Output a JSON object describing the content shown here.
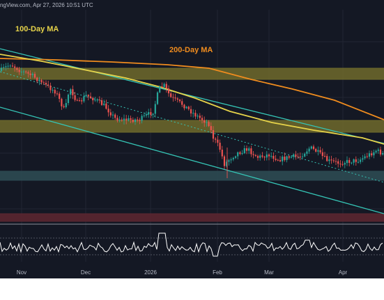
{
  "header": {
    "watermark": "ngView.com, Apr 27, 2026 10:51 UTC"
  },
  "colors": {
    "background": "#141824",
    "grid": "#222633",
    "candle_up": "#26a69a",
    "candle_down": "#ef5350",
    "ma100": "#e6d34a",
    "ma200": "#f08c1e",
    "channel": "#35c4b5",
    "zone_yellow": "#6e6a2c",
    "zone_cyan": "#2c4a52",
    "zone_red": "#5a2630",
    "oscillator": "#ffffff",
    "footer": "#ffffff"
  },
  "chart_data": {
    "type": "candlestick",
    "x_tick_labels": [
      "Nov",
      "Dec",
      "2026",
      "Feb",
      "Mar",
      "Apr"
    ],
    "series": [
      {
        "name": "100-Day MA",
        "type": "line",
        "color": "#e6d34a"
      },
      {
        "name": "200-Day MA",
        "type": "line",
        "color": "#f08c1e"
      }
    ],
    "zones": [
      {
        "kind": "resistance",
        "color": "#6e6a2c"
      },
      {
        "kind": "resistance",
        "color": "#6e6a2c"
      },
      {
        "kind": "support",
        "color": "#2c4a52"
      },
      {
        "kind": "support",
        "color": "#5a2630"
      }
    ],
    "channel": {
      "style": "descending",
      "color": "#35c4b5"
    },
    "oscillator_panel": true,
    "grid": true
  }
}
